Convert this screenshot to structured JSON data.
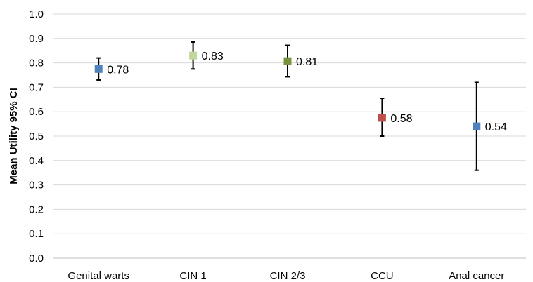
{
  "chart_data": {
    "type": "scatter",
    "title": "",
    "xlabel": "",
    "ylabel": "Mean Utility  95% CI",
    "ylim": [
      0,
      1.0
    ],
    "y_ticks": [
      "0.0",
      "0.1",
      "0.2",
      "0.3",
      "0.4",
      "0.5",
      "0.6",
      "0.7",
      "0.8",
      "0.9",
      "1.0"
    ],
    "grid": true,
    "categories": [
      "Genital warts",
      "CIN 1",
      "CIN 2/3",
      "CCU",
      "Anal cancer"
    ],
    "points": [
      {
        "category": "Genital warts",
        "value": 0.775,
        "ci_low": 0.73,
        "ci_high": 0.82,
        "label": "0.78",
        "color": "#4F81BD"
      },
      {
        "category": "CIN 1",
        "value": 0.83,
        "ci_low": 0.775,
        "ci_high": 0.885,
        "label": "0.83",
        "color": "#C3D69B"
      },
      {
        "category": "CIN 2/3",
        "value": 0.807,
        "ci_low": 0.743,
        "ci_high": 0.872,
        "label": "0.81",
        "color": "#77933C"
      },
      {
        "category": "CCU",
        "value": 0.575,
        "ci_low": 0.5,
        "ci_high": 0.655,
        "label": "0.58",
        "color": "#C0504D"
      },
      {
        "category": "Anal cancer",
        "value": 0.54,
        "ci_low": 0.36,
        "ci_high": 0.72,
        "label": "0.54",
        "color": "#4F81BD"
      }
    ]
  }
}
